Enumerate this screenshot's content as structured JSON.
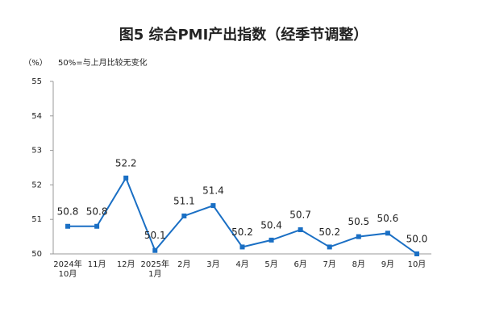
{
  "chart_data": {
    "type": "line",
    "title": "图5  综合PMI产出指数（经季节调整）",
    "unit_label": "（%）",
    "note": "50%=与上月比较无变化",
    "categories": [
      "2024年\n10月",
      "11月",
      "12月",
      "2025年\n1月",
      "2月",
      "3月",
      "4月",
      "5月",
      "6月",
      "7月",
      "8月",
      "9月",
      "10月"
    ],
    "series": [
      {
        "name": "综合PMI产出指数",
        "color": "#1a6fc4",
        "values": [
          50.8,
          50.8,
          52.2,
          50.1,
          51.1,
          51.4,
          50.2,
          50.4,
          50.7,
          50.2,
          50.5,
          50.6,
          50.0
        ],
        "value_labels": [
          "50.8",
          "50.8",
          "52.2",
          "50.1",
          "51.1",
          "51.4",
          "50.2",
          "50.4",
          "50.7",
          "50.2",
          "50.5",
          "50.6",
          "50.0"
        ]
      }
    ],
    "ylim": [
      50,
      55
    ],
    "yticks": [
      50,
      51,
      52,
      53,
      54,
      55
    ],
    "grid": false
  }
}
